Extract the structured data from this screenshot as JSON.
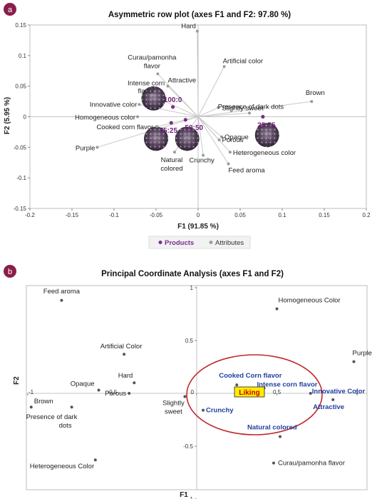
{
  "panels": {
    "a": {
      "letter": "a",
      "badge_color": "#8a1e4a"
    },
    "b": {
      "letter": "b",
      "badge_color": "#8a1e4a"
    }
  },
  "chart_data": [
    {
      "type": "scatter",
      "title": "Asymmetric row plot (axes F1 and F2: 97.80 %)",
      "xlabel": "F1 (91.85 %)",
      "ylabel": "F2 (5.95 %)",
      "xlim": [
        -0.2,
        0.2
      ],
      "ylim": [
        -0.15,
        0.15
      ],
      "x_ticks": [
        "-0.2",
        "-0.15",
        "-0.1",
        "-0.05",
        "0",
        "0.05",
        "0.1",
        "0.15",
        "0.2"
      ],
      "y_ticks": [
        "0.15",
        "0.1",
        "0.05",
        "0",
        "-0.05",
        "-0.1",
        "-0.15"
      ],
      "grid": false,
      "legend_placement": "bottom",
      "legend": [
        {
          "label": "Products",
          "color": "#7b2d8e"
        },
        {
          "label": "Attributes",
          "color": "#a0a0a0"
        }
      ],
      "colors": {
        "products": "#7b2d8e",
        "attributes": "#9a9a9a",
        "vectors": "#c8c8c8"
      },
      "series": [
        {
          "name": "Products",
          "points": [
            {
              "label": "100:0",
              "x": -0.03,
              "y": 0.016
            },
            {
              "label": "75:25",
              "x": -0.032,
              "y": -0.01
            },
            {
              "label": "50:50",
              "x": -0.015,
              "y": -0.005
            },
            {
              "label": "25:75",
              "x": 0.077,
              "y": 0.0
            }
          ]
        },
        {
          "name": "Attributes",
          "points": [
            {
              "label": "Hard",
              "x": -0.001,
              "y": 0.14
            },
            {
              "label": "Artificial color",
              "x": 0.031,
              "y": 0.082
            },
            {
              "label": "Curau/pamonha flavor",
              "x": -0.048,
              "y": 0.07
            },
            {
              "label": "Attractive",
              "x": -0.036,
              "y": 0.05
            },
            {
              "label": "Intense corn flavor",
              "x": -0.055,
              "y": 0.035
            },
            {
              "label": "Innovative color",
              "x": -0.07,
              "y": 0.02
            },
            {
              "label": "Slightly sweet",
              "x": 0.024,
              "y": 0.015
            },
            {
              "label": "Brown",
              "x": 0.135,
              "y": 0.025
            },
            {
              "label": "Presence of dark dots",
              "x": 0.061,
              "y": 0.006
            },
            {
              "label": "Homogeneous color",
              "x": -0.072,
              "y": 0.0
            },
            {
              "label": "Cooked corn flavor",
              "x": -0.049,
              "y": -0.016
            },
            {
              "label": "Opaque",
              "x": 0.028,
              "y": -0.033
            },
            {
              "label": "Porous",
              "x": 0.025,
              "y": -0.038
            },
            {
              "label": "Purple",
              "x": -0.12,
              "y": -0.05
            },
            {
              "label": "Heterogeneous color",
              "x": 0.038,
              "y": -0.058
            },
            {
              "label": "Crunchy",
              "x": 0.006,
              "y": -0.063
            },
            {
              "label": "Natural colored",
              "x": -0.028,
              "y": -0.058
            },
            {
              "label": "Feed aroma",
              "x": 0.036,
              "y": -0.077
            }
          ]
        }
      ]
    },
    {
      "type": "scatter",
      "title": "Principal Coordinate Analysis (axes F1 and F2)",
      "xlabel": "F1",
      "ylabel": "F2",
      "xlim": [
        -1,
        1
      ],
      "ylim": [
        -1,
        1
      ],
      "x_ticks": [
        "-1",
        "-0.5",
        "0",
        "0.5",
        "1"
      ],
      "y_ticks": [
        "1",
        "0.5",
        "0",
        "-0.5",
        "-1"
      ],
      "grid": false,
      "highlight": {
        "label": "Liking",
        "x": 0.33,
        "y": 0.0,
        "box_color": "#ffee00",
        "text_color": "#cc0000",
        "ellipse_color": "#c0282d"
      },
      "points": [
        {
          "label": "Feed aroma",
          "x": -0.8,
          "y": 0.88,
          "style": "normal"
        },
        {
          "label": "Homogeneous Color",
          "x": 0.5,
          "y": 0.8,
          "style": "normal"
        },
        {
          "label": "Artificial Color",
          "x": -0.43,
          "y": 0.37,
          "style": "normal"
        },
        {
          "label": "Purple",
          "x": 0.98,
          "y": 0.3,
          "style": "normal"
        },
        {
          "label": "Hard",
          "x": -0.37,
          "y": 0.1,
          "style": "normal"
        },
        {
          "label": "Opaque",
          "x": -0.58,
          "y": 0.03,
          "style": "normal"
        },
        {
          "label": "Porous",
          "x": -0.4,
          "y": 0.0,
          "style": "normal"
        },
        {
          "label": "Cooked Corn flavor",
          "x": 0.25,
          "y": 0.08,
          "style": "highlight"
        },
        {
          "label": "Intense corn flavor",
          "x": 0.42,
          "y": 0.05,
          "style": "highlight"
        },
        {
          "label": "Innovative Color",
          "x": 0.71,
          "y": 0.0,
          "style": "highlight"
        },
        {
          "label": "Attractive",
          "x": 0.85,
          "y": -0.06,
          "style": "highlight"
        },
        {
          "label": "Natural colored",
          "x": 0.52,
          "y": -0.41,
          "style": "highlight"
        },
        {
          "label": "Crunchy",
          "x": 0.04,
          "y": -0.16,
          "style": "highlight"
        },
        {
          "label": "Brown",
          "x": -0.98,
          "y": -0.13,
          "style": "normal"
        },
        {
          "label": "Presence of dark dots",
          "x": -0.74,
          "y": -0.13,
          "style": "normal"
        },
        {
          "label": "Slightly sweet",
          "x": -0.07,
          "y": -0.03,
          "style": "normal"
        },
        {
          "label": "Heterogeneous Color",
          "x": -0.6,
          "y": -0.63,
          "style": "normal"
        },
        {
          "label": "Curau/pamonha flavor",
          "x": 0.48,
          "y": -0.66,
          "style": "normal"
        }
      ]
    }
  ]
}
